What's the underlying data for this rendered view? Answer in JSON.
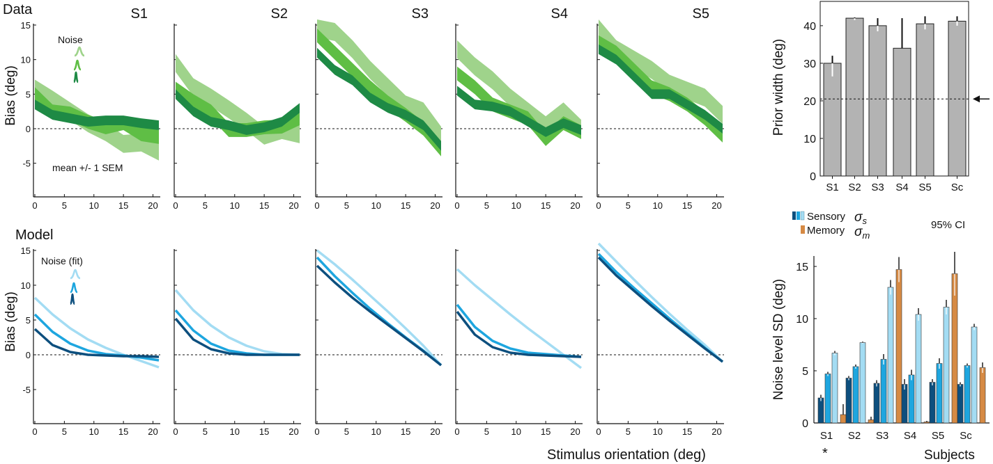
{
  "labels": {
    "data_row": "Data",
    "model_row": "Model",
    "noise_legend": "Noise",
    "noise_fit_legend": "Noise (fit)",
    "sem_note": "mean +/- 1 SEM",
    "x_axis": "Stimulus orientation (deg)",
    "sensory": "Sensory",
    "memory": "Memory",
    "sigma_s": "σ",
    "sigma_s_sub": "s",
    "sigma_m": "σ",
    "sigma_m_sub": "m",
    "ci": "95% CI",
    "subjects": "Subjects",
    "star": "*"
  },
  "colors": {
    "green_light": "#9fd38b",
    "green_mid": "#5fbe45",
    "green_dark": "#1e8a45",
    "blue_light": "#a3dcf3",
    "blue_mid": "#1ea6df",
    "blue_dark": "#0d4f7e",
    "gray_bar": "#b3b3b3",
    "orange": "#d68a44",
    "orange_light": "#e8be93"
  },
  "chart_data": [
    {
      "type": "line",
      "panel": "data",
      "subjects": [
        "S1",
        "S2",
        "S3",
        "S4",
        "S5"
      ],
      "x": [
        0,
        3,
        6,
        9,
        12,
        15,
        18,
        21
      ],
      "xticks": [
        0,
        5,
        10,
        15,
        20
      ],
      "xlim": [
        0,
        21
      ],
      "yticks": [
        -5,
        0,
        5,
        10,
        15
      ],
      "ylim": [
        -10,
        15
      ],
      "ylabel": "Bias (deg)",
      "series_sem_deg": [
        1.3,
        1.0,
        0.7
      ],
      "panels": [
        {
          "subject": "S1",
          "series": [
            {
              "level": "high",
              "values": [
                5.8,
                4.2,
                2.5,
                0.8,
                -0.5,
                -2.2,
                -2.0,
                -3.3
              ]
            },
            {
              "level": "mid",
              "values": [
                5.0,
                2.5,
                2.2,
                1.0,
                0.2,
                0.8,
                -0.8,
                -1.2
              ]
            },
            {
              "level": "low",
              "values": [
                3.5,
                2.0,
                1.5,
                1.0,
                1.2,
                1.2,
                0.8,
                0.5
              ]
            }
          ]
        },
        {
          "subject": "S2",
          "series": [
            {
              "level": "high",
              "values": [
                9.5,
                6.0,
                4.5,
                2.8,
                1.0,
                -1.0,
                -0.2,
                -0.8
              ]
            },
            {
              "level": "mid",
              "values": [
                5.8,
                4.0,
                2.5,
                -0.2,
                -0.2,
                0.2,
                0.3,
                1.5
              ]
            },
            {
              "level": "low",
              "values": [
                5.0,
                2.5,
                1.0,
                0.5,
                -0.2,
                0.2,
                1.0,
                3.0
              ]
            }
          ]
        },
        {
          "subject": "S3",
          "series": [
            {
              "level": "high",
              "values": [
                14.5,
                14.0,
                11.5,
                8.5,
                6.0,
                3.5,
                2.5,
                -1.0
              ]
            },
            {
              "level": "mid",
              "values": [
                13.5,
                11.0,
                8.5,
                6.0,
                3.8,
                2.0,
                0.0,
                -3.0
              ]
            },
            {
              "level": "low",
              "values": [
                11.0,
                8.5,
                7.0,
                4.5,
                3.0,
                2.0,
                0.5,
                -2.5
              ]
            }
          ]
        },
        {
          "subject": "S4",
          "series": [
            {
              "level": "high",
              "values": [
                11.5,
                9.0,
                7.0,
                4.5,
                2.5,
                0.5,
                2.5,
                0.0
              ]
            },
            {
              "level": "mid",
              "values": [
                8.0,
                6.0,
                3.5,
                2.5,
                1.5,
                -1.5,
                0.8,
                -0.5
              ]
            },
            {
              "level": "low",
              "values": [
                5.5,
                3.5,
                3.2,
                2.5,
                1.0,
                -0.5,
                0.8,
                -0.2
              ]
            }
          ]
        },
        {
          "subject": "S5",
          "series": [
            {
              "level": "high",
              "values": [
                14.5,
                11.5,
                10.0,
                8.5,
                6.5,
                5.5,
                4.5,
                2.0
              ]
            },
            {
              "level": "mid",
              "values": [
                12.5,
                11.0,
                8.5,
                6.0,
                5.0,
                3.5,
                1.5,
                -1.0
              ]
            },
            {
              "level": "low",
              "values": [
                11.5,
                10.0,
                7.5,
                5.0,
                5.0,
                3.5,
                2.0,
                0.0
              ]
            }
          ]
        }
      ]
    },
    {
      "type": "line",
      "panel": "model",
      "subjects": [
        "S1",
        "S2",
        "S3",
        "S4",
        "S5"
      ],
      "xticks": [
        0,
        5,
        10,
        15,
        20
      ],
      "xlim": [
        0,
        21
      ],
      "yticks": [
        -5,
        0,
        5,
        10,
        15
      ],
      "ylim": [
        -10,
        15
      ],
      "ylabel": "Bias (deg)",
      "xlabel": "Stimulus orientation (deg)",
      "x": [
        0,
        3,
        6,
        9,
        12,
        15,
        18,
        21
      ],
      "panels": [
        {
          "subject": "S1",
          "series": [
            {
              "level": "high",
              "values": [
                8.2,
                5.8,
                3.8,
                2.2,
                1.0,
                0.0,
                -0.9,
                -1.8
              ]
            },
            {
              "level": "mid",
              "values": [
                5.8,
                3.3,
                1.6,
                0.6,
                0.1,
                -0.1,
                -0.4,
                -0.8
              ]
            },
            {
              "level": "low",
              "values": [
                3.7,
                1.4,
                0.4,
                0.0,
                -0.1,
                -0.2,
                -0.2,
                -0.3
              ]
            }
          ]
        },
        {
          "subject": "S2",
          "series": [
            {
              "level": "high",
              "values": [
                9.3,
                6.4,
                4.2,
                2.5,
                1.3,
                0.5,
                0.1,
                0.0
              ]
            },
            {
              "level": "mid",
              "values": [
                6.4,
                3.5,
                1.6,
                0.6,
                0.2,
                0.0,
                0.0,
                0.0
              ]
            },
            {
              "level": "low",
              "values": [
                5.2,
                2.2,
                0.8,
                0.2,
                0.0,
                0.0,
                0.0,
                0.0
              ]
            }
          ]
        },
        {
          "subject": "S3",
          "series": [
            {
              "level": "high",
              "values": [
                15.0,
                13.0,
                10.8,
                8.5,
                6.2,
                3.8,
                1.3,
                -1.5
              ]
            },
            {
              "level": "mid",
              "values": [
                14.0,
                11.3,
                8.9,
                6.6,
                4.5,
                2.5,
                0.6,
                -1.5
              ]
            },
            {
              "level": "low",
              "values": [
                12.8,
                10.4,
                8.2,
                6.2,
                4.3,
                2.4,
                0.5,
                -1.5
              ]
            }
          ]
        },
        {
          "subject": "S4",
          "series": [
            {
              "level": "high",
              "values": [
                12.3,
                10.0,
                7.9,
                5.8,
                3.8,
                1.9,
                0.0,
                -1.9
              ]
            },
            {
              "level": "mid",
              "values": [
                7.2,
                4.0,
                2.0,
                0.9,
                0.3,
                0.1,
                -0.1,
                -0.3
              ]
            },
            {
              "level": "low",
              "values": [
                6.2,
                2.9,
                1.1,
                0.3,
                0.0,
                -0.1,
                -0.2,
                -0.3
              ]
            }
          ]
        },
        {
          "subject": "S5",
          "series": [
            {
              "level": "high",
              "values": [
                16.0,
                13.4,
                10.8,
                8.3,
                5.9,
                3.6,
                1.4,
                -1.0
              ]
            },
            {
              "level": "mid",
              "values": [
                14.5,
                11.9,
                9.6,
                7.4,
                5.2,
                3.1,
                1.0,
                -1.0
              ]
            },
            {
              "level": "low",
              "values": [
                14.0,
                11.4,
                9.2,
                7.0,
                4.9,
                2.9,
                0.9,
                -1.0
              ]
            }
          ]
        }
      ]
    },
    {
      "type": "bar",
      "panel": "prior_width",
      "categories": [
        "S1",
        "S2",
        "S3",
        "S4",
        "S5",
        "Sc"
      ],
      "values": [
        30,
        42,
        40,
        34,
        40.5,
        41.2
      ],
      "err_low": [
        26.5,
        41.5,
        38.5,
        34,
        39,
        40
      ],
      "err_high": [
        32,
        42.2,
        42,
        42,
        42.5,
        42.5
      ],
      "reference": 20.5,
      "ylabel": "Prior width (deg)",
      "yticks": [
        0,
        10,
        20,
        30,
        40
      ],
      "ylim": [
        0,
        43.5
      ]
    },
    {
      "type": "bar",
      "panel": "noise_levels",
      "categories": [
        "S1",
        "S2",
        "S3",
        "S4",
        "S5",
        "Sc"
      ],
      "series": [
        {
          "name": "Sensory",
          "level": "low",
          "values": [
            2.4,
            4.3,
            3.8,
            3.7,
            3.9,
            3.7
          ],
          "err": [
            0.3,
            0.2,
            0.3,
            0.5,
            0.3,
            0.2
          ]
        },
        {
          "name": "Sensory",
          "level": "mid",
          "values": [
            4.7,
            5.4,
            6.1,
            4.6,
            5.7,
            5.5
          ],
          "err": [
            0.2,
            0.2,
            0.5,
            0.5,
            0.5,
            0.2
          ]
        },
        {
          "name": "Sensory",
          "level": "high",
          "values": [
            6.7,
            7.7,
            13.0,
            10.4,
            11.1,
            9.2
          ],
          "err": [
            0.2,
            0.1,
            0.7,
            0.6,
            0.7,
            0.3
          ]
        },
        {
          "name": "Memory",
          "values": [
            0.8,
            0.3,
            14.7,
            0.1,
            14.3,
            5.3
          ],
          "err": [
            1.0,
            0.3,
            1.2,
            0.1,
            2.1,
            0.5
          ]
        }
      ],
      "ylabel": "Noise level SD (deg)",
      "xlabel": "Subjects",
      "yticks": [
        0,
        5,
        10,
        15
      ],
      "ylim": [
        0,
        16
      ]
    }
  ]
}
